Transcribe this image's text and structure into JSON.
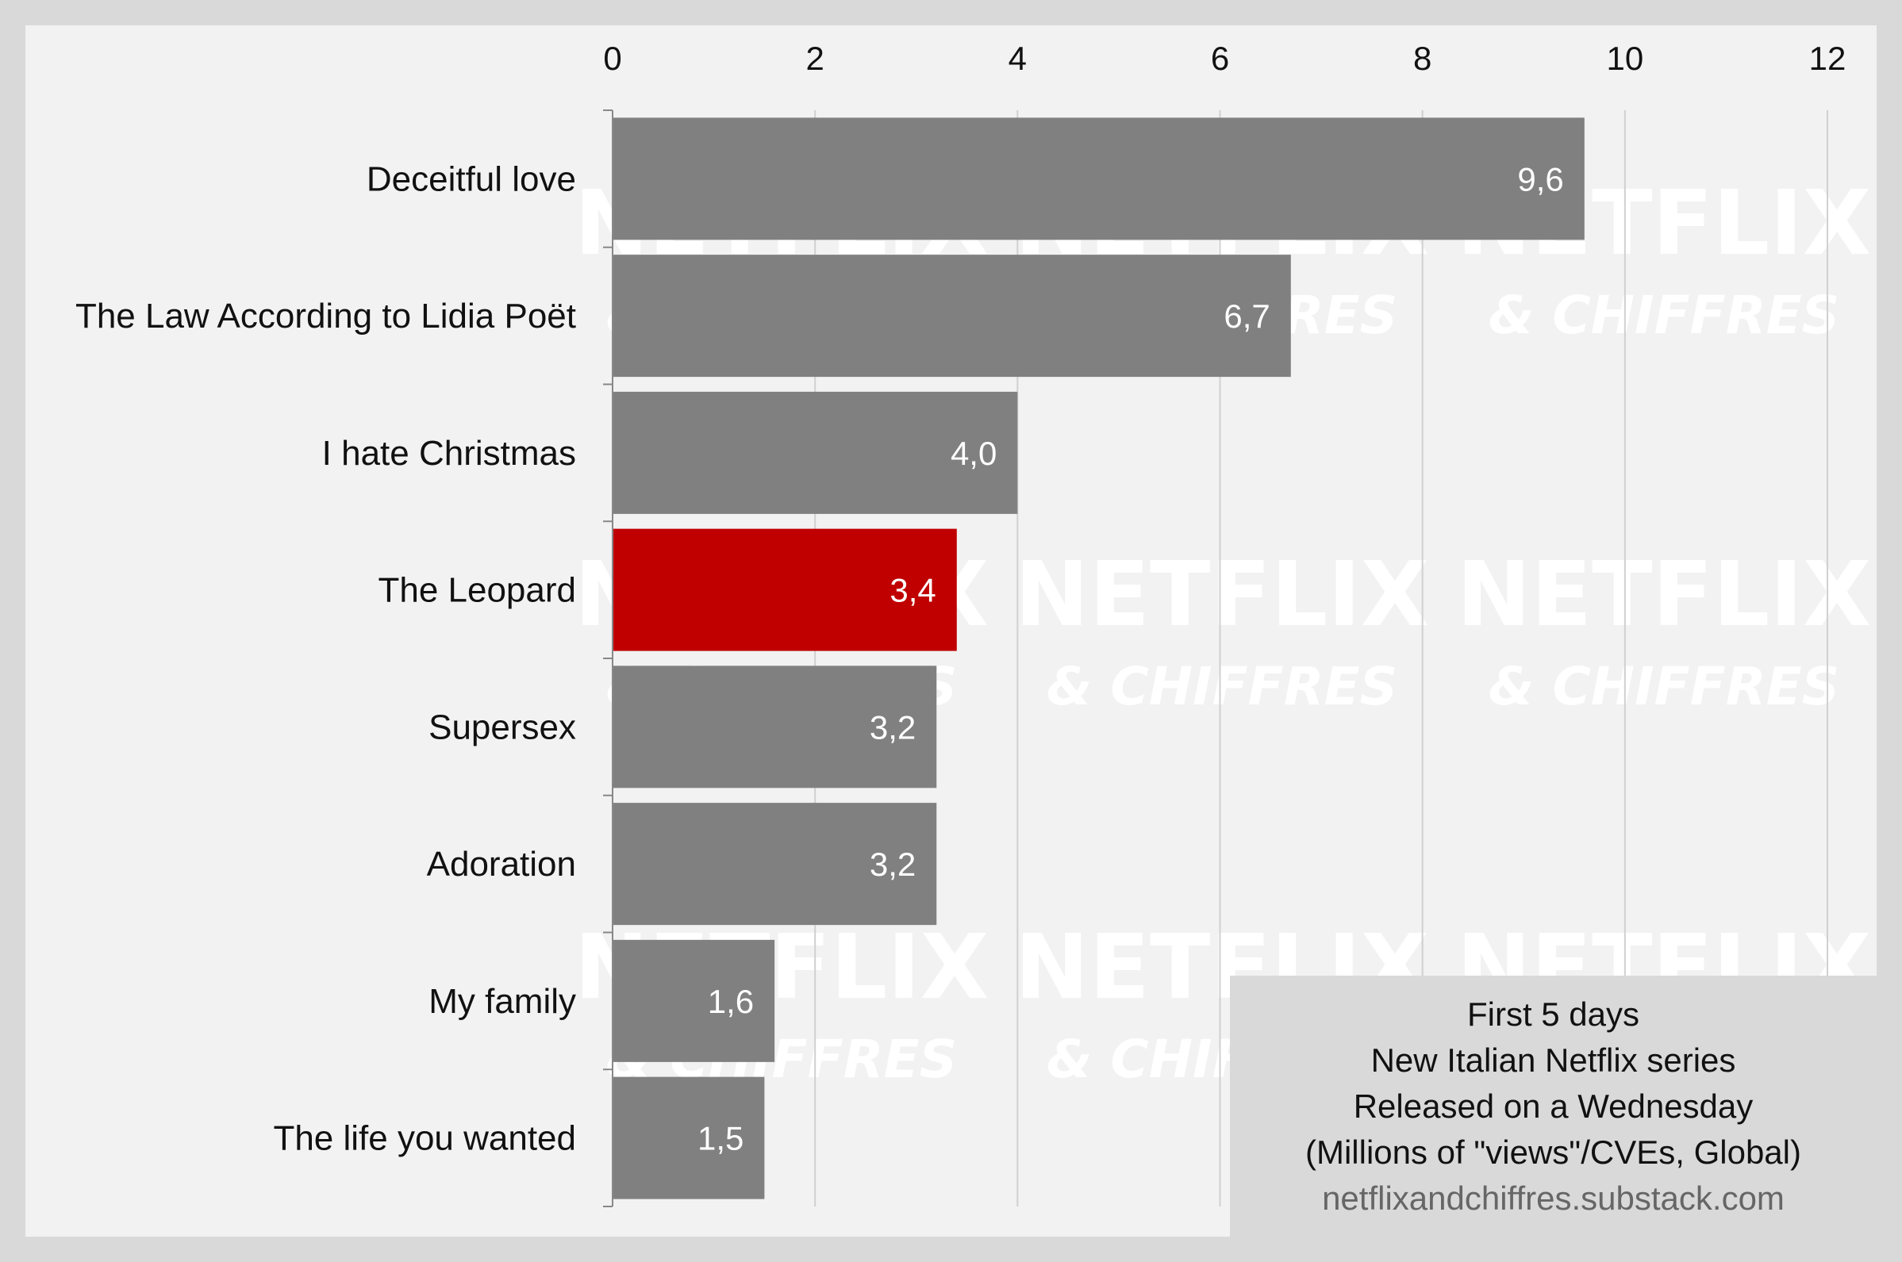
{
  "chart_data": {
    "type": "bar",
    "orientation": "horizontal",
    "categories": [
      "Deceitful love",
      "The Law According to Lidia Poët",
      "I hate Christmas",
      "The Leopard",
      "Supersex",
      "Adoration",
      "My family",
      "The life you wanted"
    ],
    "values": [
      9.6,
      6.7,
      4.0,
      3.4,
      3.2,
      3.2,
      1.6,
      1.5
    ],
    "value_labels": [
      "9,6",
      "6,7",
      "4,0",
      "3,4",
      "3,2",
      "3,2",
      "1,6",
      "1,5"
    ],
    "highlight_index": 3,
    "xlim": [
      0,
      12
    ],
    "xticks": [
      "0",
      "2",
      "4",
      "6",
      "8",
      "10",
      "12"
    ],
    "x_axis_position": "top",
    "grid": true,
    "title": "",
    "xlabel": "",
    "ylabel": ""
  },
  "colors": {
    "background": "#d9d9d9",
    "plot_background": "#f2f2f2",
    "bar": "#808080",
    "highlight_bar": "#c00000",
    "gridline": "#d0d0d0",
    "value_label": "#ffffff"
  },
  "info_box": {
    "lines": [
      "First 5 days",
      "New Italian Netflix series",
      "Released on a Wednesday",
      "(Millions of \"views\"/CVEs, Global)"
    ],
    "source": "netflixandchiffres.substack.com"
  },
  "watermark": {
    "line1": "NETFLIX",
    "line2": "& CHIFFRES"
  }
}
